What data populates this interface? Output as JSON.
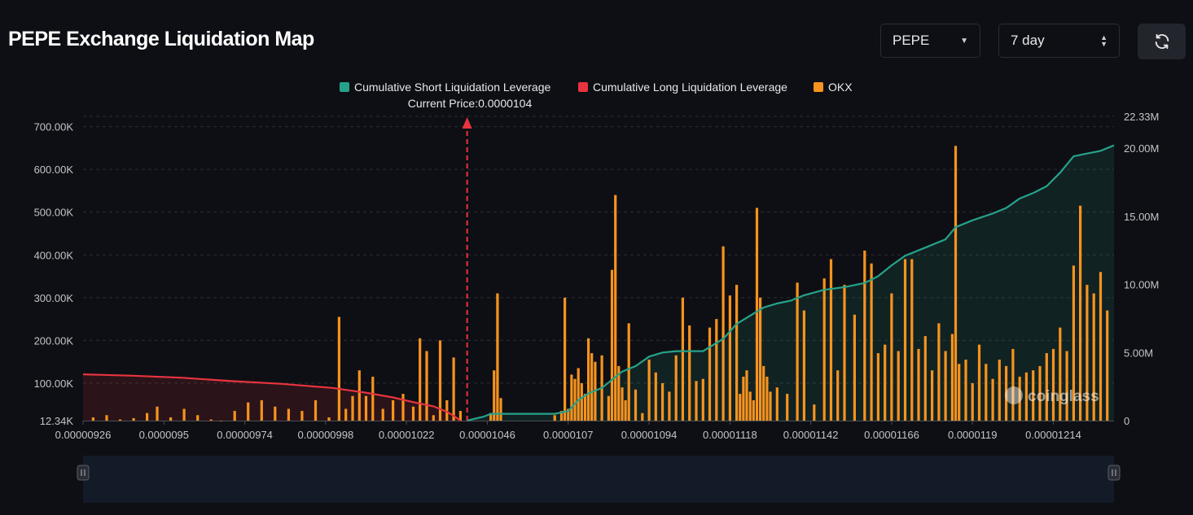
{
  "header": {
    "title": "PEPE Exchange Liquidation Map",
    "coin_select": "PEPE",
    "period_select": "7 day"
  },
  "icons": {
    "refresh": "refresh-icon",
    "coin_caret": "chevron-down-icon",
    "period_stepper": "up-down-icon"
  },
  "colors": {
    "short": "#26a28a",
    "long": "#e8343f",
    "okx": "#f7931e",
    "marker": "#e8343f",
    "background": "#0e0f14"
  },
  "legend": [
    {
      "label": "Cumulative Short Liquidation Leverage",
      "color": "#26a28a"
    },
    {
      "label": "Cumulative Long Liquidation Leverage",
      "color": "#e8343f"
    },
    {
      "label": "OKX",
      "color": "#f7931e"
    }
  ],
  "current_price_label": "Current Price:0.0000104",
  "watermark": "coinglass",
  "chart_data": {
    "type": "bar",
    "x_tick_labels": [
      "0.00000926",
      "0.0000095",
      "0.00000974",
      "0.00000998",
      "0.00001022",
      "0.00001046",
      "0.0000107",
      "0.00001094",
      "0.00001118",
      "0.00001142",
      "0.00001166",
      "0.0000119",
      "0.00001214"
    ],
    "x_range": [
      9.26e-06,
      1.232e-05
    ],
    "current_price": 1.04e-05,
    "left_axis": {
      "ticks": [
        "12.34K",
        "100.00K",
        "200.00K",
        "300.00K",
        "400.00K",
        "500.00K",
        "600.00K",
        "700.00K"
      ],
      "ylim": [
        12340,
        724000
      ]
    },
    "right_axis": {
      "ticks": [
        "0",
        "5.00M",
        "10.00M",
        "15.00M",
        "20.00M",
        "22.33M"
      ],
      "ylim": [
        0,
        22330000
      ]
    },
    "series": [
      {
        "name": "OKX",
        "axis": "left",
        "x": [
          9.29e-06,
          9.33e-06,
          9.37e-06,
          9.41e-06,
          9.45e-06,
          9.48e-06,
          9.52e-06,
          9.56e-06,
          9.6e-06,
          9.64e-06,
          9.67e-06,
          9.71e-06,
          9.75e-06,
          9.79e-06,
          9.83e-06,
          9.87e-06,
          9.91e-06,
          9.95e-06,
          9.99e-06,
          1.002e-05,
          1.004e-05,
          1.006e-05,
          1.008e-05,
          1.01e-05,
          1.012e-05,
          1.015e-05,
          1.018e-05,
          1.021e-05,
          1.024e-05,
          1.026e-05,
          1.028e-05,
          1.03e-05,
          1.032e-05,
          1.034e-05,
          1.036e-05,
          1.038e-05,
          1.047e-05,
          1.048e-05,
          1.049e-05,
          1.05e-05,
          1.066e-05,
          1.068e-05,
          1.069e-05,
          1.07e-05,
          1.071e-05,
          1.072e-05,
          1.073e-05,
          1.074e-05,
          1.075e-05,
          1.076e-05,
          1.077e-05,
          1.078e-05,
          1.08e-05,
          1.082e-05,
          1.083e-05,
          1.084e-05,
          1.085e-05,
          1.086e-05,
          1.087e-05,
          1.088e-05,
          1.09e-05,
          1.092e-05,
          1.094e-05,
          1.096e-05,
          1.098e-05,
          1.1e-05,
          1.102e-05,
          1.104e-05,
          1.106e-05,
          1.108e-05,
          1.11e-05,
          1.112e-05,
          1.114e-05,
          1.116e-05,
          1.118e-05,
          1.12e-05,
          1.121e-05,
          1.122e-05,
          1.123e-05,
          1.124e-05,
          1.125e-05,
          1.126e-05,
          1.127e-05,
          1.128e-05,
          1.129e-05,
          1.13e-05,
          1.132e-05,
          1.135e-05,
          1.138e-05,
          1.14e-05,
          1.143e-05,
          1.146e-05,
          1.148e-05,
          1.15e-05,
          1.152e-05,
          1.155e-05,
          1.158e-05,
          1.16e-05,
          1.162e-05,
          1.164e-05,
          1.166e-05,
          1.168e-05,
          1.17e-05,
          1.172e-05,
          1.174e-05,
          1.176e-05,
          1.178e-05,
          1.18e-05,
          1.182e-05,
          1.184e-05,
          1.185e-05,
          1.186e-05,
          1.188e-05,
          1.19e-05,
          1.192e-05,
          1.194e-05,
          1.196e-05,
          1.198e-05,
          1.2e-05,
          1.202e-05,
          1.204e-05,
          1.206e-05,
          1.208e-05,
          1.21e-05,
          1.212e-05,
          1.214e-05,
          1.216e-05,
          1.218e-05,
          1.22e-05,
          1.222e-05,
          1.224e-05,
          1.226e-05,
          1.228e-05,
          1.23e-05
        ],
        "values": [
          20000,
          25000,
          15000,
          18000,
          30000,
          45000,
          20000,
          40000,
          25000,
          15000,
          12000,
          35000,
          55000,
          60000,
          45000,
          40000,
          35000,
          60000,
          20000,
          255000,
          40000,
          70000,
          130000,
          70000,
          115000,
          40000,
          60000,
          75000,
          45000,
          205000,
          175000,
          25000,
          200000,
          60000,
          160000,
          35000,
          30000,
          130000,
          310000,
          65000,
          25000,
          35000,
          300000,
          40000,
          120000,
          110000,
          135000,
          100000,
          75000,
          205000,
          170000,
          150000,
          165000,
          70000,
          365000,
          540000,
          140000,
          90000,
          60000,
          240000,
          85000,
          30000,
          155000,
          125000,
          100000,
          80000,
          165000,
          300000,
          235000,
          105000,
          110000,
          230000,
          250000,
          420000,
          305000,
          330000,
          75000,
          115000,
          130000,
          80000,
          60000,
          510000,
          300000,
          140000,
          115000,
          80000,
          90000,
          75000,
          335000,
          270000,
          50000,
          345000,
          390000,
          130000,
          330000,
          260000,
          410000,
          380000,
          170000,
          190000,
          310000,
          175000,
          390000,
          390000,
          180000,
          210000,
          130000,
          240000,
          175000,
          215000,
          655000,
          145000,
          155000,
          100000,
          190000,
          145000,
          110000,
          155000,
          140000,
          180000,
          115000,
          125000,
          130000,
          140000,
          170000,
          180000,
          230000,
          175000,
          375000,
          515000,
          330000,
          310000,
          360000,
          270000
        ]
      },
      {
        "name": "Cumulative Long Liquidation Leverage",
        "axis": "right",
        "x": [
          9.26e-06,
          9.4e-06,
          9.55e-06,
          9.7e-06,
          9.85e-06,
          1e-05,
          1.01e-05,
          1.018e-05,
          1.025e-05,
          1.03e-05,
          1.034e-05,
          1.036e-05,
          1.038e-05
        ],
        "values": [
          3400000,
          3300000,
          3150000,
          2900000,
          2700000,
          2400000,
          2050000,
          1700000,
          1300000,
          1050000,
          650000,
          350000,
          0
        ]
      },
      {
        "name": "Cumulative Short Liquidation Leverage",
        "axis": "right",
        "x": [
          1.04e-05,
          1.045e-05,
          1.047e-05,
          1.05e-05,
          1.066e-05,
          1.07e-05,
          1.073e-05,
          1.076e-05,
          1.08e-05,
          1.083e-05,
          1.086e-05,
          1.09e-05,
          1.094e-05,
          1.098e-05,
          1.102e-05,
          1.108e-05,
          1.11e-05,
          1.116e-05,
          1.12e-05,
          1.124e-05,
          1.128e-05,
          1.132e-05,
          1.136e-05,
          1.14e-05,
          1.146e-05,
          1.152e-05,
          1.158e-05,
          1.162e-05,
          1.166e-05,
          1.17e-05,
          1.176e-05,
          1.182e-05,
          1.185e-05,
          1.19e-05,
          1.196e-05,
          1.2e-05,
          1.204e-05,
          1.208e-05,
          1.212e-05,
          1.216e-05,
          1.22e-05,
          1.224e-05,
          1.228e-05,
          1.23e-05,
          1.232e-05
        ],
        "values": [
          0,
          300000,
          500000,
          500000,
          500000,
          700000,
          1500000,
          2000000,
          2400000,
          3000000,
          3600000,
          4000000,
          4700000,
          5000000,
          5100000,
          5100000,
          5100000,
          6000000,
          7100000,
          7700000,
          8300000,
          8600000,
          8800000,
          9200000,
          9600000,
          9800000,
          10100000,
          10600000,
          11400000,
          12100000,
          12700000,
          13300000,
          14200000,
          14700000,
          15200000,
          15600000,
          16300000,
          16700000,
          17200000,
          18200000,
          19400000,
          19600000,
          19800000,
          20000000,
          20200000
        ]
      }
    ]
  }
}
